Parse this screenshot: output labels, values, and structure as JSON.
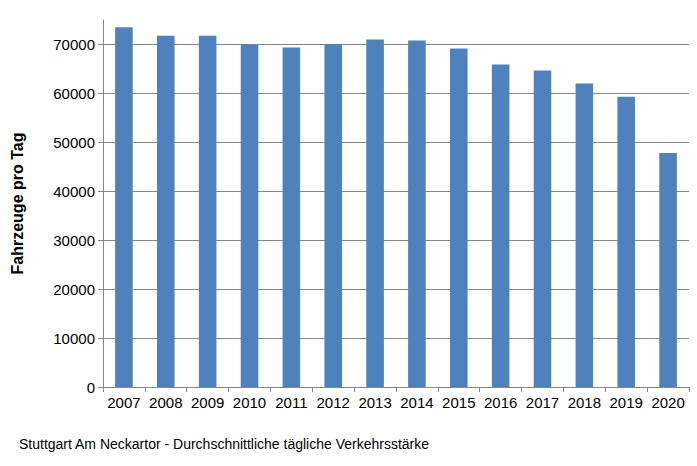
{
  "chart_data": {
    "type": "bar",
    "title": "Stuttgart Am Neckartor - Durchschnittliche tägliche Verkehrsstärke",
    "y_label": "Fahrzeuge pro Tag",
    "categories": [
      "2007",
      "2008",
      "2009",
      "2010",
      "2011",
      "2012",
      "2013",
      "2014",
      "2015",
      "2016",
      "2017",
      "2018",
      "2019",
      "2020"
    ],
    "values": [
      73500,
      71800,
      71800,
      70000,
      69400,
      70100,
      71000,
      70800,
      69200,
      65900,
      64700,
      62000,
      59300,
      47800
    ],
    "color": "#4f81bd",
    "ylim": [
      0,
      75000
    ],
    "yticks": [
      0,
      10000,
      20000,
      30000,
      40000,
      50000,
      60000,
      70000
    ],
    "grid": true
  }
}
